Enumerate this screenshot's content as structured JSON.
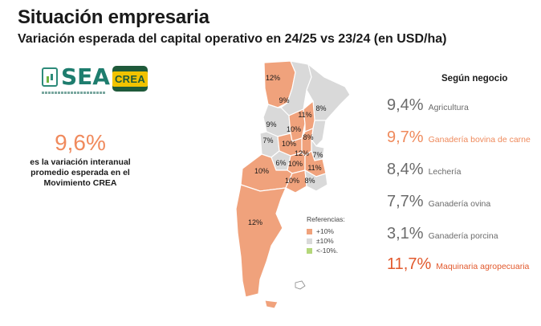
{
  "header": {
    "title": "Situación empresaria",
    "subtitle": "Variación esperada del capital operativo en 24/25 vs 23/24 (en USD/ha)"
  },
  "logos": {
    "sea": "SEA",
    "crea": "CREA"
  },
  "headline": {
    "value": "9,6%",
    "description": "es la variación interanual promedio esperada en el Movimiento CREA"
  },
  "colors": {
    "above_10": "#f0a27c",
    "band_10": "#d9d9d9",
    "below_10": "#b4d77a"
  },
  "map": {
    "regions": [
      {
        "id": "noa-west",
        "label": "12%",
        "band": "+10%"
      },
      {
        "id": "noa-east",
        "label": "9%",
        "band": "±10%"
      },
      {
        "id": "nea",
        "label": "8%",
        "band": "±10%"
      },
      {
        "id": "centro-norte-west",
        "label": "9%",
        "band": "±10%"
      },
      {
        "id": "centro-norte-mid",
        "label": "10%",
        "band": "+10%"
      },
      {
        "id": "litoral-norte",
        "label": "11%",
        "band": "+10%"
      },
      {
        "id": "litoral-mid",
        "label": "8%",
        "band": "±10%"
      },
      {
        "id": "cuyo",
        "label": "7%",
        "band": "±10%"
      },
      {
        "id": "centro",
        "label": "10%",
        "band": "+10%"
      },
      {
        "id": "santa-fe-sur",
        "label": "12%",
        "band": "+10%"
      },
      {
        "id": "entre-rios",
        "label": "7%",
        "band": "±10%"
      },
      {
        "id": "oeste",
        "label": "6%",
        "band": "±10%"
      },
      {
        "id": "sur-cordoba",
        "label": "10%",
        "band": "+10%"
      },
      {
        "id": "norte-bsas",
        "label": "11%",
        "band": "+10%"
      },
      {
        "id": "la-pampa",
        "label": "10%",
        "band": "+10%"
      },
      {
        "id": "sudoeste-bsas",
        "label": "10%",
        "band": "+10%"
      },
      {
        "id": "sudeste-bsas",
        "label": "8%",
        "band": "±10%"
      },
      {
        "id": "patagonia",
        "label": "12%",
        "band": "+10%"
      }
    ],
    "legend": {
      "title": "Referencias:",
      "items": [
        "+10%",
        "±10%",
        "<-10%."
      ]
    }
  },
  "segments": {
    "heading": "Según negocio",
    "items": [
      {
        "value": "9,4%",
        "label": "Agricultura"
      },
      {
        "value": "9,7%",
        "label": "Ganadería bovina de carne"
      },
      {
        "value": "8,4%",
        "label": "Lechería"
      },
      {
        "value": "7,7%",
        "label": "Ganadería ovina"
      },
      {
        "value": "3,1%",
        "label": "Ganadería porcina"
      },
      {
        "value": "11,7%",
        "label": "Maquinaria agropecuaria"
      }
    ]
  }
}
